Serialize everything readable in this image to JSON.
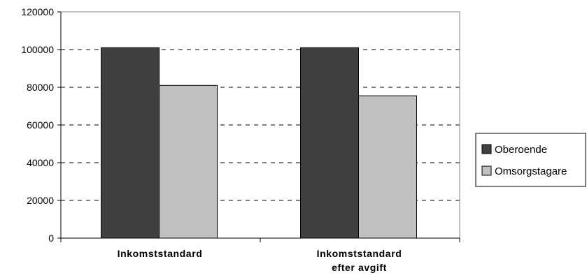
{
  "chart_data": {
    "type": "bar",
    "categories": [
      [
        "Inkomststandard"
      ],
      [
        "Inkomststandard",
        "efter avgift"
      ]
    ],
    "series": [
      {
        "name": "Oberoende",
        "values": [
          101000,
          101000
        ],
        "color": "#404040"
      },
      {
        "name": "Omsorgstagare",
        "values": [
          81000,
          75500
        ],
        "color": "#c0c0c0"
      }
    ],
    "ylim": [
      0,
      120000
    ],
    "yticks": [
      0,
      20000,
      40000,
      60000,
      80000,
      100000,
      120000
    ],
    "grid": "horizontal dashed",
    "legend": "right"
  }
}
